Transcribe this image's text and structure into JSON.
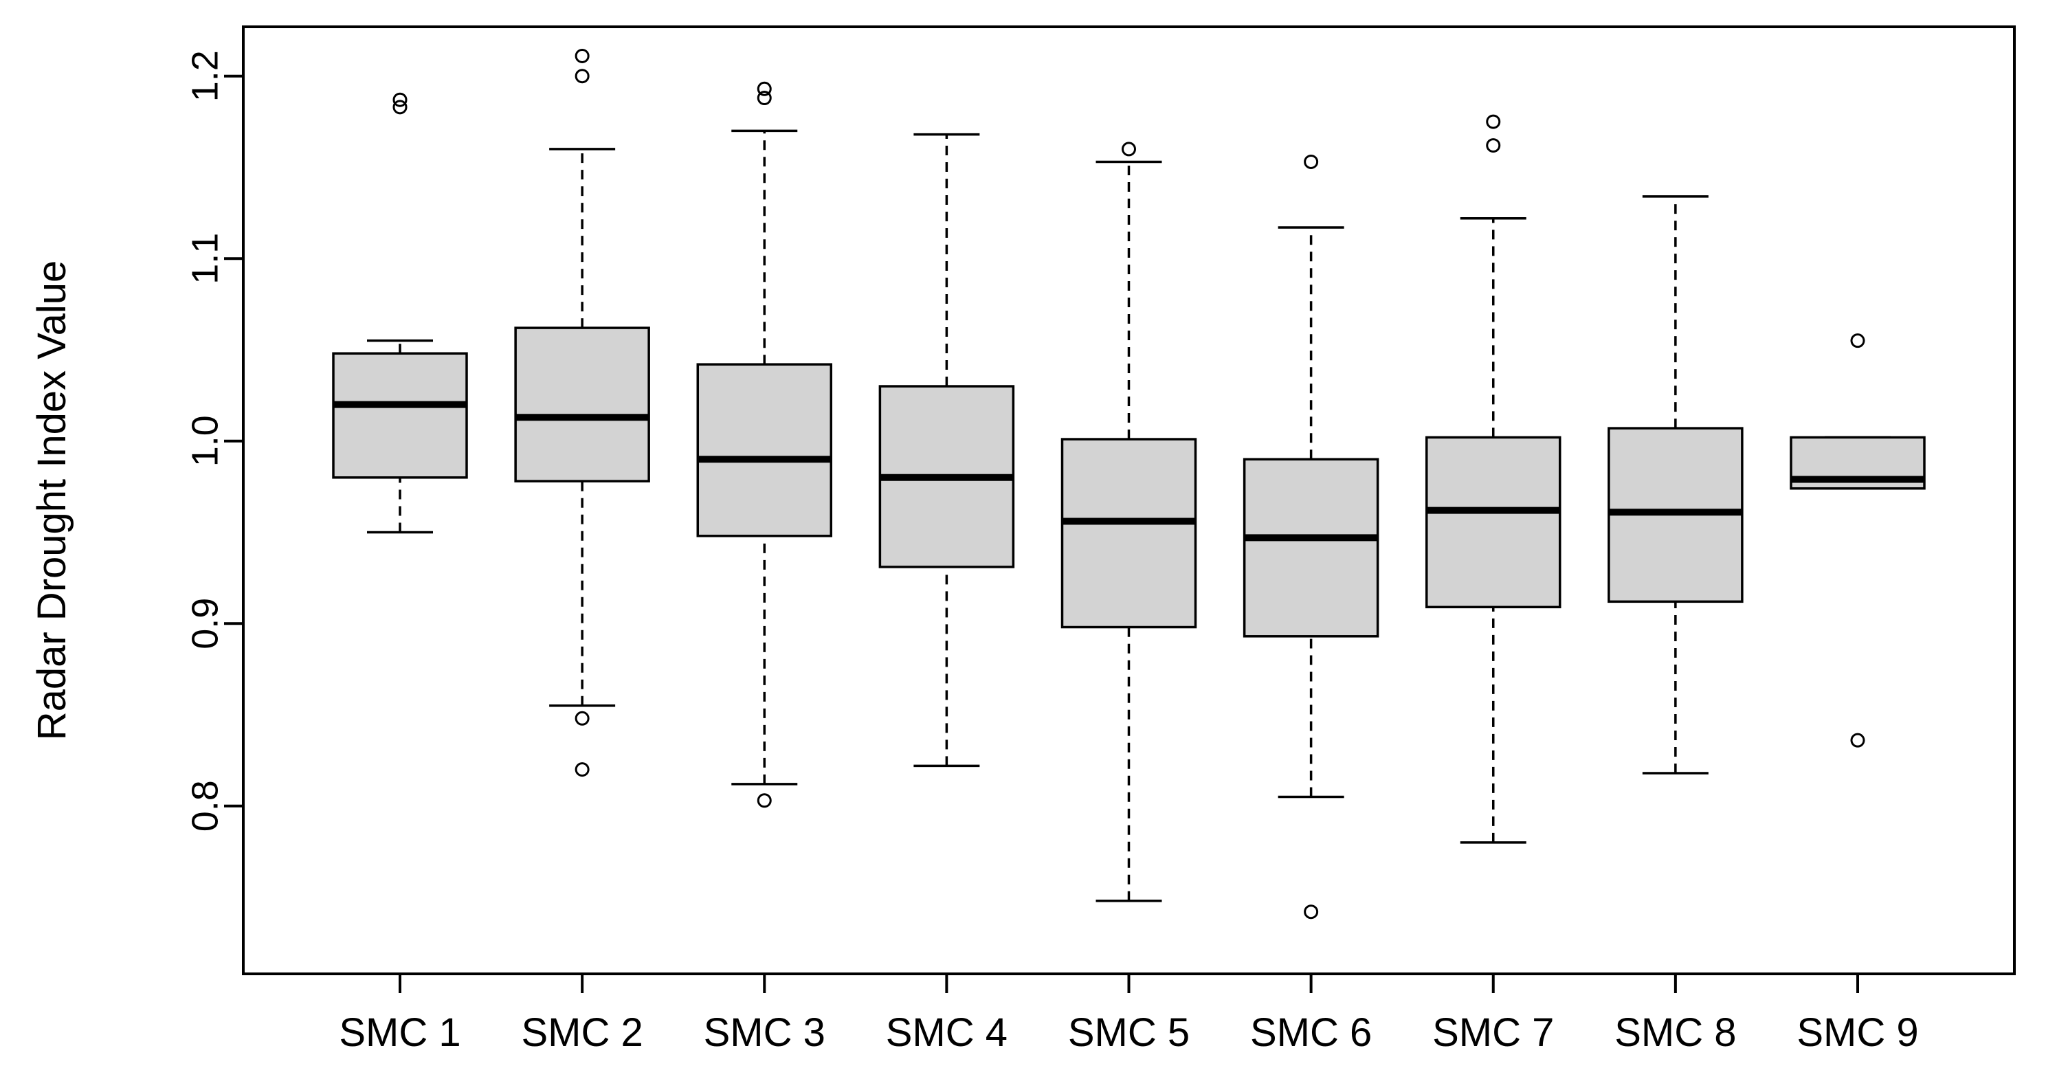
{
  "chart_data": {
    "type": "boxplot",
    "title": "",
    "xlabel": "",
    "ylabel": "Radar Drought Index Value",
    "ylim": [
      0.708,
      1.227
    ],
    "yticks": [
      0.8,
      0.9,
      1.0,
      1.1,
      1.2
    ],
    "ytick_labels": [
      "0.8",
      "0.9",
      "1.0",
      "1.1",
      "1.2"
    ],
    "categories": [
      "SMC 1",
      "SMC 2",
      "SMC 3",
      "SMC 4",
      "SMC 5",
      "SMC 6",
      "SMC 7",
      "SMC 8",
      "SMC 9"
    ],
    "grid": false,
    "legend": "none",
    "box_fill": "#d3d3d3",
    "stroke_color": "#000000",
    "series": [
      {
        "category": "SMC 1",
        "whisker_low": 0.95,
        "q1": 0.98,
        "median": 1.02,
        "q3": 1.048,
        "whisker_high": 1.055,
        "outliers": [
          1.183,
          1.187
        ]
      },
      {
        "category": "SMC 2",
        "whisker_low": 0.855,
        "q1": 0.978,
        "median": 1.013,
        "q3": 1.062,
        "whisker_high": 1.16,
        "outliers": [
          1.211,
          1.2,
          0.848,
          0.82
        ]
      },
      {
        "category": "SMC 3",
        "whisker_low": 0.812,
        "q1": 0.948,
        "median": 0.99,
        "q3": 1.042,
        "whisker_high": 1.17,
        "outliers": [
          1.193,
          1.188,
          0.803
        ]
      },
      {
        "category": "SMC 4",
        "whisker_low": 0.822,
        "q1": 0.931,
        "median": 0.98,
        "q3": 1.03,
        "whisker_high": 1.168,
        "outliers": []
      },
      {
        "category": "SMC 5",
        "whisker_low": 0.748,
        "q1": 0.898,
        "median": 0.956,
        "q3": 1.001,
        "whisker_high": 1.153,
        "outliers": [
          1.16
        ]
      },
      {
        "category": "SMC 6",
        "whisker_low": 0.805,
        "q1": 0.893,
        "median": 0.947,
        "q3": 0.99,
        "whisker_high": 1.117,
        "outliers": [
          1.153,
          0.742
        ]
      },
      {
        "category": "SMC 7",
        "whisker_low": 0.78,
        "q1": 0.909,
        "median": 0.962,
        "q3": 1.002,
        "whisker_high": 1.122,
        "outliers": [
          1.175,
          1.162
        ]
      },
      {
        "category": "SMC 8",
        "whisker_low": 0.818,
        "q1": 0.912,
        "median": 0.961,
        "q3": 1.007,
        "whisker_high": 1.134,
        "outliers": []
      },
      {
        "category": "SMC 9",
        "whisker_low": 0.974,
        "q1": 0.974,
        "median": 0.979,
        "q3": 1.002,
        "whisker_high": 1.002,
        "outliers": [
          1.055,
          0.836
        ]
      }
    ]
  }
}
